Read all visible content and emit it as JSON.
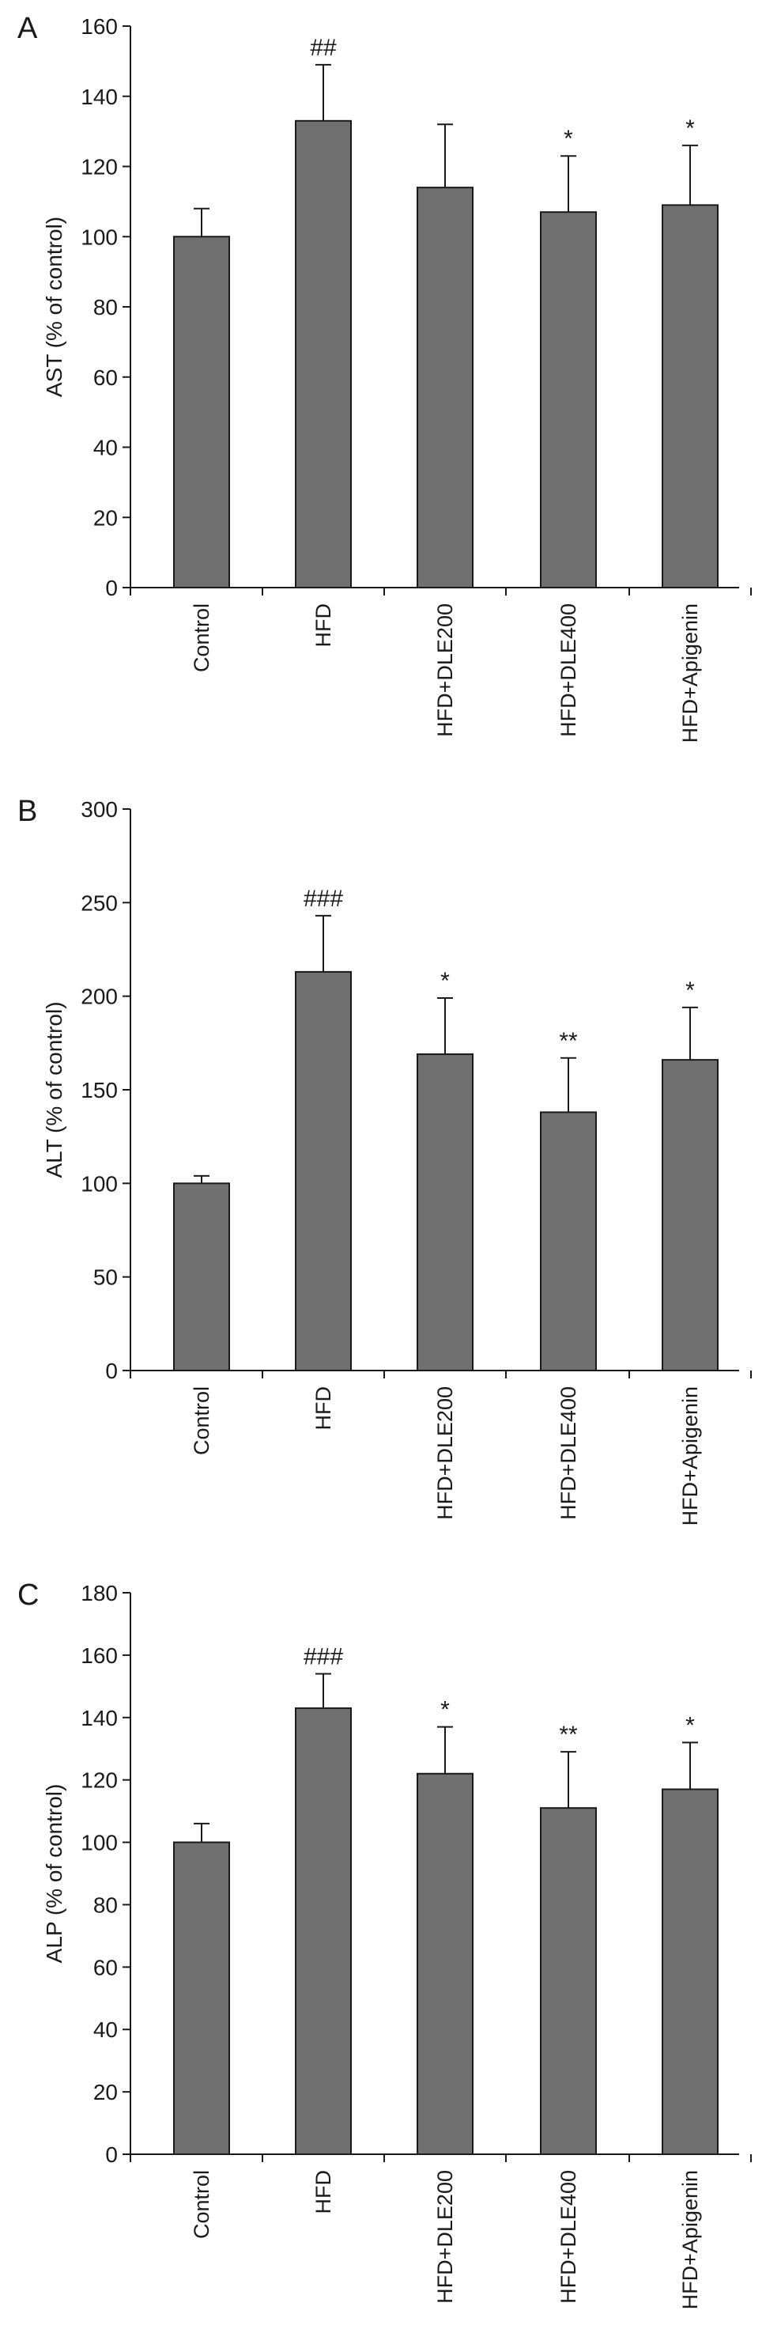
{
  "colors": {
    "bar_fill": "#707070",
    "axis": "#1a1a1a",
    "background": "#ffffff"
  },
  "chart_data": [
    {
      "type": "bar",
      "panel": "A",
      "ylabel": "AST (% of control)",
      "ylim": [
        0,
        160
      ],
      "yticks": [
        0,
        20,
        40,
        60,
        80,
        100,
        120,
        140,
        160
      ],
      "categories": [
        "Control",
        "HFD",
        "HFD+DLE200",
        "HFD+DLE400",
        "HFD+Apigenin"
      ],
      "values": [
        100,
        133,
        114,
        107,
        109
      ],
      "errors": [
        8,
        16,
        18,
        16,
        17
      ],
      "annotations": [
        "",
        "##",
        "",
        "*",
        "*"
      ]
    },
    {
      "type": "bar",
      "panel": "B",
      "ylabel": "ALT (% of control)",
      "ylim": [
        0,
        300
      ],
      "yticks": [
        0,
        50,
        100,
        150,
        200,
        250,
        300
      ],
      "categories": [
        "Control",
        "HFD",
        "HFD+DLE200",
        "HFD+DLE400",
        "HFD+Apigenin"
      ],
      "values": [
        100,
        213,
        169,
        138,
        166
      ],
      "errors": [
        4,
        30,
        30,
        29,
        28
      ],
      "annotations": [
        "",
        "###",
        "*",
        "**",
        "*"
      ]
    },
    {
      "type": "bar",
      "panel": "C",
      "ylabel": "ALP (% of control)",
      "ylim": [
        0,
        180
      ],
      "yticks": [
        0,
        20,
        40,
        60,
        80,
        100,
        120,
        140,
        160,
        180
      ],
      "categories": [
        "Control",
        "HFD",
        "HFD+DLE200",
        "HFD+DLE400",
        "HFD+Apigenin"
      ],
      "values": [
        100,
        143,
        122,
        111,
        117
      ],
      "errors": [
        6,
        11,
        15,
        18,
        15
      ],
      "annotations": [
        "",
        "###",
        "*",
        "**",
        "*"
      ]
    }
  ]
}
